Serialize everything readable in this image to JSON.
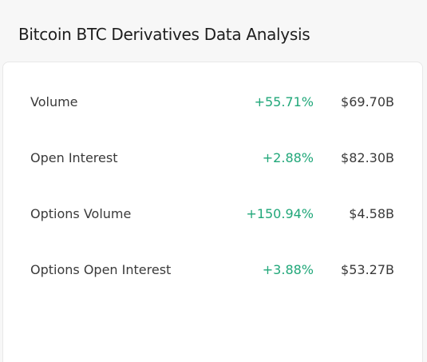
{
  "title": "Bitcoin BTC Derivatives Data Analysis",
  "colors": {
    "positive": "#20a779",
    "text": "#3a3a3a"
  },
  "rows": [
    {
      "label": "Volume",
      "change": "+55.71%",
      "value": "$69.70B"
    },
    {
      "label": "Open Interest",
      "change": "+2.88%",
      "value": "$82.30B"
    },
    {
      "label": "Options Volume",
      "change": "+150.94%",
      "value": "$4.58B"
    },
    {
      "label": "Options Open Interest",
      "change": "+3.88%",
      "value": "$53.27B"
    }
  ]
}
